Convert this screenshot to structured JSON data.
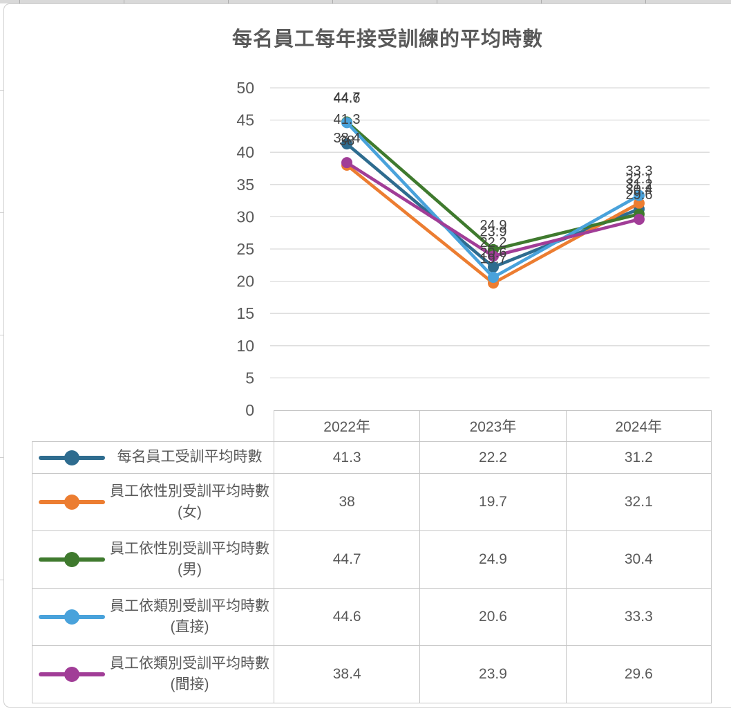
{
  "chart_data": {
    "type": "line",
    "title": "每名員工每年接受訓練的平均時數",
    "categories": [
      "2022年",
      "2023年",
      "2024年"
    ],
    "series": [
      {
        "name": "每名員工受訓平均時數",
        "color": "#2E6C8F",
        "values": [
          41.3,
          22.2,
          31.2
        ],
        "values_display": [
          "41.3",
          "22.2",
          "31.2"
        ]
      },
      {
        "name": "員工依性別受訓平均時數(女)",
        "color": "#EC7D31",
        "values": [
          38,
          19.7,
          32.1
        ],
        "values_display": [
          "38",
          "19.7",
          "32.1"
        ]
      },
      {
        "name": "員工依性別受訓平均時數(男)",
        "color": "#3F7A2E",
        "values": [
          44.7,
          24.9,
          30.4
        ],
        "values_display": [
          "44.7",
          "24.9",
          "30.4"
        ]
      },
      {
        "name": "員工依類別受訓平均時數(直接)",
        "color": "#49A2DB",
        "values": [
          44.6,
          20.6,
          33.3
        ],
        "values_display": [
          "44.6",
          "20.6",
          "33.3"
        ]
      },
      {
        "name": "員工依類別受訓平均時數(間接)",
        "color": "#A13D97",
        "values": [
          38.4,
          23.9,
          29.6
        ],
        "values_display": [
          "38.4",
          "23.9",
          "29.6"
        ]
      }
    ],
    "axis": {
      "min": 0,
      "max": 50,
      "step": 5
    },
    "ytick_labels": [
      "0",
      "5",
      "10",
      "15",
      "20",
      "25",
      "30",
      "35",
      "40",
      "45",
      "50"
    ],
    "grid": true,
    "data_labels": true,
    "legend_position": "table-left",
    "colors": {
      "grid_line": "#d9d9d9",
      "table_border": "#c6c6c6",
      "axis_text": "#595959",
      "data_label_text": "#3f3f3f",
      "title_text": "#595959"
    }
  }
}
